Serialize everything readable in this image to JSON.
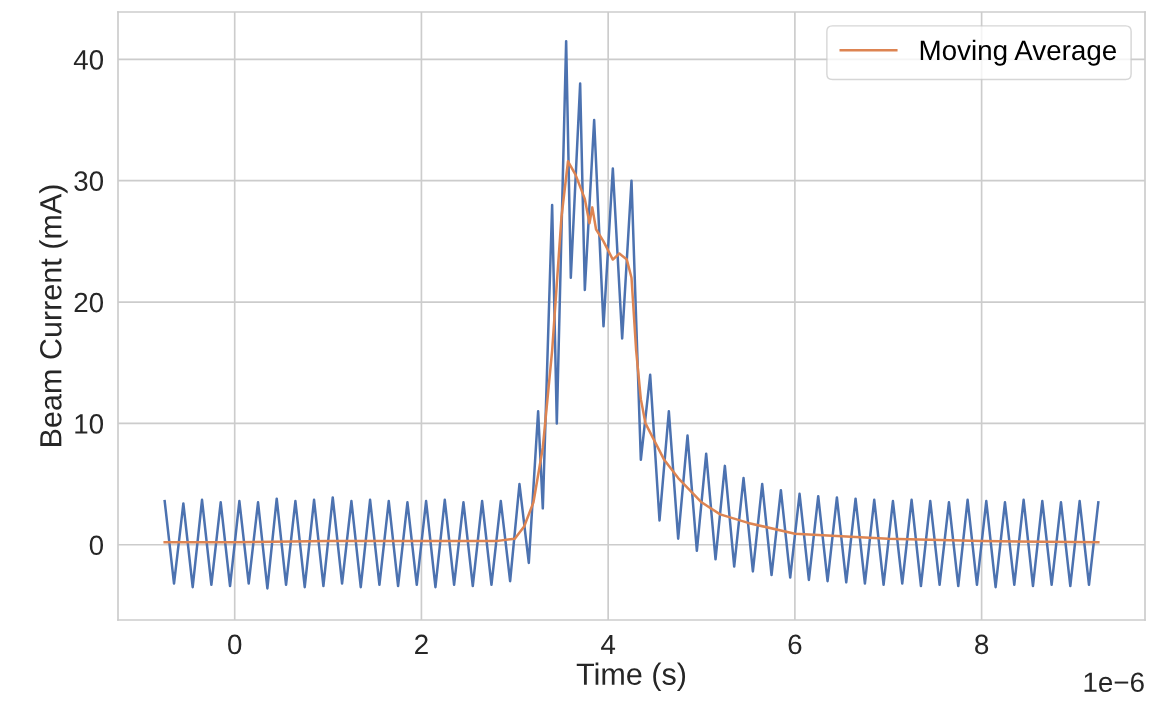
{
  "chart_data": {
    "type": "line",
    "xlabel": "Time (s)",
    "ylabel": "Beam Current (mA)",
    "annotations": [
      "1e−6"
    ],
    "xlim": [
      -1.25,
      9.75
    ],
    "xticks": [
      0,
      2,
      4,
      6,
      8
    ],
    "ylim": [
      -6.2,
      43.9
    ],
    "yticks": [
      0,
      10,
      20,
      30,
      40
    ],
    "grid": true,
    "legend": "top right",
    "line_style": "solid",
    "marker": "none",
    "series": [
      {
        "color": "#4c72b0",
        "x": [
          -0.75,
          -0.65,
          -0.55,
          -0.45,
          -0.35,
          -0.25,
          -0.15,
          -0.05,
          0.05,
          0.15,
          0.25,
          0.35,
          0.45,
          0.55,
          0.65,
          0.75,
          0.85,
          0.95,
          1.05,
          1.15,
          1.25,
          1.35,
          1.45,
          1.55,
          1.65,
          1.75,
          1.85,
          1.95,
          2.05,
          2.15,
          2.25,
          2.35,
          2.45,
          2.55,
          2.65,
          2.75,
          2.85,
          2.95,
          3.05,
          3.15,
          3.25,
          3.3,
          3.4,
          3.45,
          3.55,
          3.6,
          3.7,
          3.75,
          3.85,
          3.95,
          4.05,
          4.15,
          4.25,
          4.35,
          4.45,
          4.55,
          4.65,
          4.75,
          4.85,
          4.95,
          5.05,
          5.15,
          5.25,
          5.35,
          5.45,
          5.55,
          5.65,
          5.75,
          5.85,
          5.95,
          6.05,
          6.15,
          6.25,
          6.35,
          6.45,
          6.55,
          6.65,
          6.75,
          6.85,
          6.95,
          7.05,
          7.15,
          7.25,
          7.35,
          7.45,
          7.55,
          7.65,
          7.75,
          7.85,
          7.95,
          8.05,
          8.15,
          8.25,
          8.35,
          8.45,
          8.55,
          8.65,
          8.75,
          8.85,
          8.95,
          9.05,
          9.15,
          9.25
        ],
        "values": [
          3.6,
          -3.2,
          3.4,
          -3.5,
          3.7,
          -3.3,
          3.5,
          -3.4,
          3.6,
          -3.2,
          3.5,
          -3.6,
          3.8,
          -3.3,
          3.6,
          -3.5,
          3.7,
          -3.4,
          3.9,
          -3.2,
          3.6,
          -3.5,
          3.7,
          -3.3,
          3.6,
          -3.4,
          3.5,
          -3.3,
          3.6,
          -3.5,
          3.7,
          -3.3,
          3.5,
          -3.4,
          3.6,
          -3.3,
          3.6,
          -3.0,
          5,
          -1.5,
          11,
          3,
          28,
          10,
          41.5,
          22,
          38,
          21,
          35,
          18,
          31,
          17,
          30,
          7,
          14,
          2,
          11,
          0.5,
          9,
          -0.5,
          7.5,
          -1.2,
          6.5,
          -1.8,
          5.5,
          -2.2,
          5,
          -2.5,
          4.5,
          -2.7,
          4.2,
          -2.9,
          4.0,
          -3.0,
          3.9,
          -3.1,
          3.8,
          -3.2,
          3.7,
          -3.3,
          3.6,
          -3.2,
          3.7,
          -3.4,
          3.6,
          -3.3,
          3.5,
          -3.4,
          3.7,
          -3.3,
          3.6,
          -3.5,
          3.5,
          -3.3,
          3.7,
          -3.4,
          3.6,
          -3.3,
          3.5,
          -3.4,
          3.6,
          -3.3,
          3.5
        ]
      },
      {
        "name": "Moving Average",
        "color": "#dd8452",
        "x": [
          -0.75,
          0,
          1,
          2,
          2.8,
          3.0,
          3.1,
          3.2,
          3.3,
          3.4,
          3.5,
          3.57,
          3.65,
          3.75,
          3.8,
          3.83,
          3.87,
          3.95,
          4.05,
          4.12,
          4.2,
          4.25,
          4.3,
          4.35,
          4.4,
          4.5,
          4.6,
          4.75,
          5.0,
          5.2,
          5.5,
          6,
          7,
          8,
          9.25
        ],
        "values": [
          0.2,
          0.2,
          0.3,
          0.3,
          0.3,
          0.5,
          1.5,
          3.5,
          8,
          16,
          27,
          31.6,
          30.5,
          28.5,
          26.5,
          27.8,
          26,
          25,
          23.5,
          24,
          23.5,
          22,
          16,
          12,
          10,
          8.5,
          7,
          5.5,
          3.5,
          2.5,
          1.8,
          0.9,
          0.5,
          0.3,
          0.2
        ]
      }
    ]
  }
}
